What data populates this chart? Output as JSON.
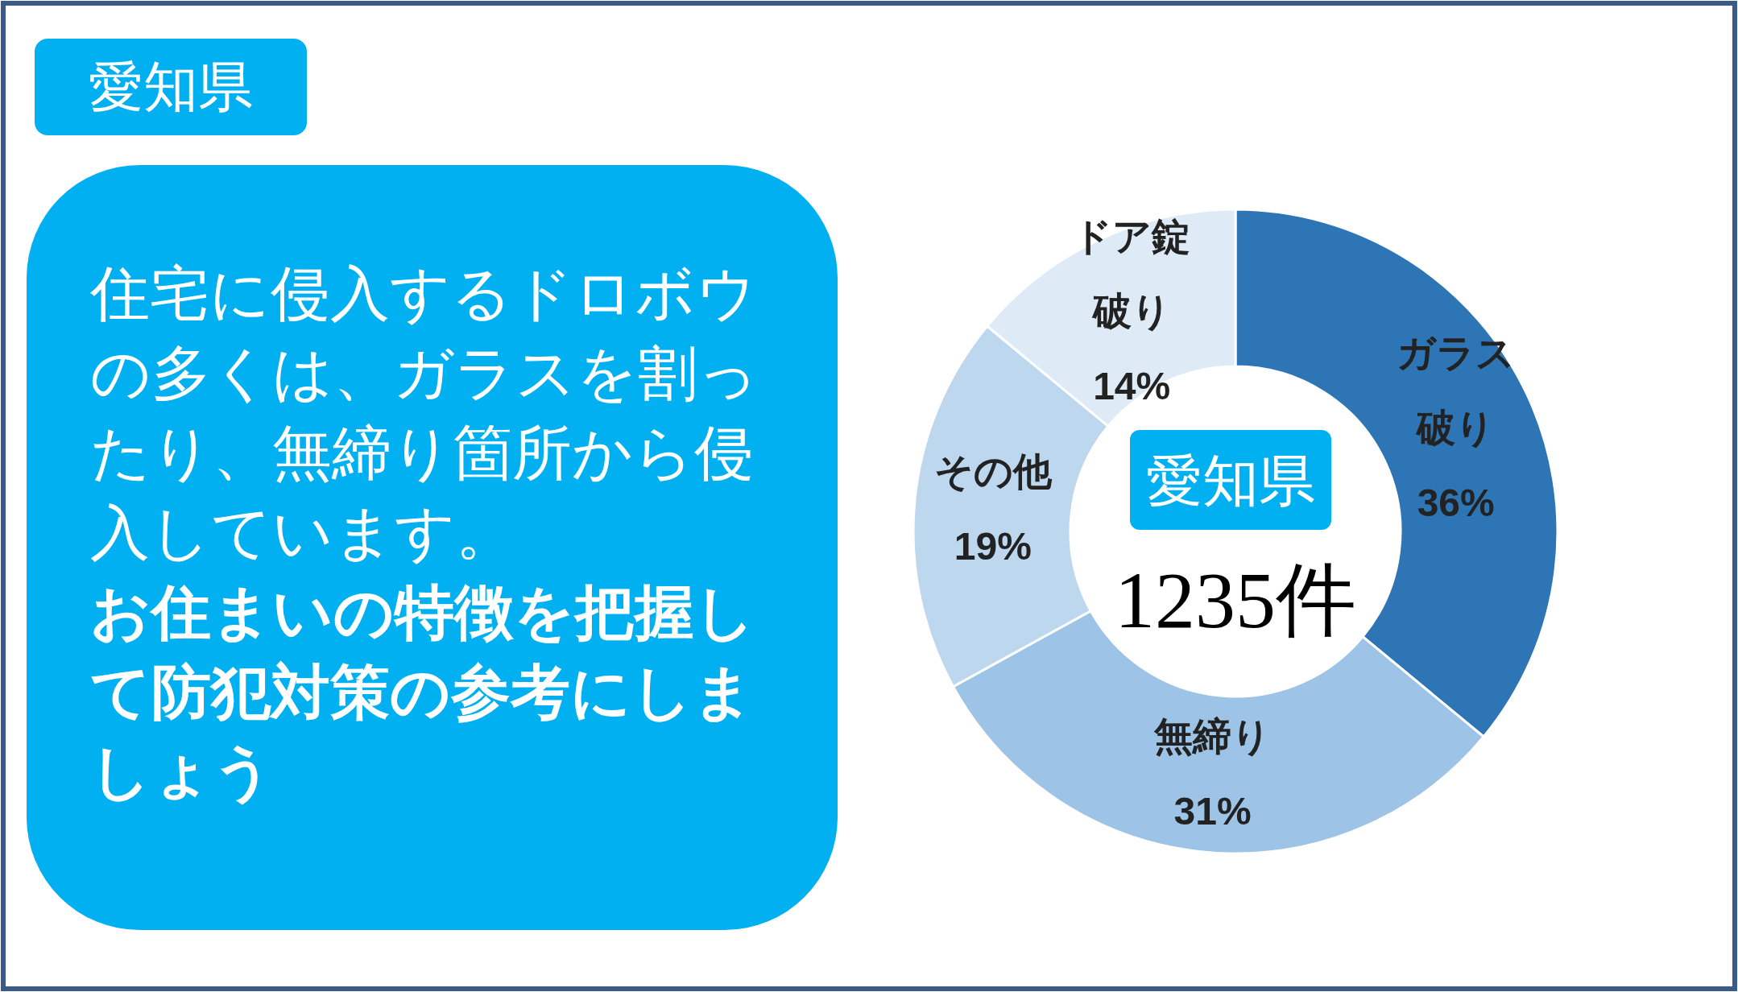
{
  "chart_data": {
    "type": "donut",
    "title": "愛知県",
    "categories": [
      "ガラス破り",
      "無締り",
      "その他",
      "ドア錠破り"
    ],
    "values": [
      36,
      31,
      19,
      14
    ],
    "value_labels": [
      "36%",
      "31%",
      "19%",
      "14%"
    ],
    "colors": [
      "#2e75b6",
      "#9dc3e6",
      "#bdd7ee",
      "#deebf7"
    ],
    "annotations": [
      "住宅に侵入するドロボウの多くは、ガラスを割ったり、無締り箇所から侵入しています。",
      "お住まいの特徴を把握して防犯対策の参考にしましょう",
      "愛知県",
      "1235件"
    ]
  }
}
